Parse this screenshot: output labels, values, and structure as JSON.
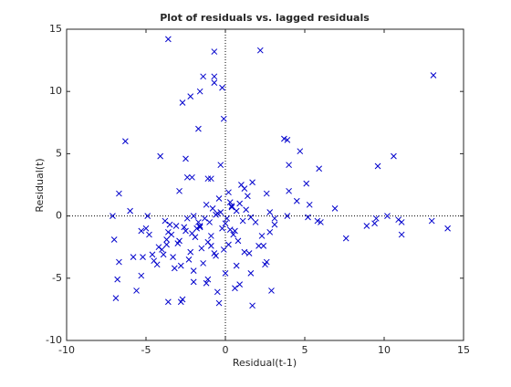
{
  "chart_data": {
    "type": "scatter",
    "title": "Plot of residuals vs. lagged residuals",
    "x_label": "Residual(t-1)",
    "y_label": "Residual(t)",
    "color": "#0000cc",
    "marker": "x",
    "xlim": [
      -10,
      15
    ],
    "ylim": [
      -10,
      15
    ],
    "xticks": [
      -10,
      -5,
      0,
      5,
      10,
      15
    ],
    "yticks": [
      -10,
      -5,
      0,
      5,
      10,
      15
    ],
    "reference_lines": {
      "x": 0,
      "y": 0
    },
    "x": [
      -3.6,
      -0.7,
      2.2,
      13.1,
      -1.4,
      -0.7,
      -0.7,
      -0.2,
      -2.2,
      -2.7,
      -1.6,
      -0.1,
      -1.7,
      -6.3,
      3.7,
      3.9,
      4.7,
      -4.1,
      10.6,
      9.6,
      -2.5,
      -0.3,
      4.0,
      5.9,
      -2.4,
      -2.1,
      -1.1,
      -0.9,
      1.7,
      1.0,
      0.2,
      1.2,
      5.1,
      -6.7,
      -2.9,
      2.6,
      4.0,
      1.4,
      4.5,
      5.3,
      -6.0,
      -7.1,
      -4.9,
      -3.5,
      -5.3,
      2.8,
      3.9,
      5.2,
      5.8,
      6.0,
      6.9,
      7.6,
      8.9,
      9.4,
      9.5,
      10.2,
      10.9,
      11.1,
      11.1,
      13.0,
      14.0,
      -7.0,
      -6.7,
      -6.8,
      -6.9,
      -5.6,
      -5.3,
      -5.2,
      -5.8,
      -4.6,
      -3.7,
      -3.6,
      -2.8,
      -2.7,
      -2.0,
      -1.2,
      -1.1,
      -0.5,
      -0.4,
      0.0,
      0.6,
      0.9,
      1.6,
      1.7,
      2.9,
      2.5,
      2.6,
      2.4,
      2.1,
      2.8,
      3.1,
      3.1,
      -0.3,
      0.1,
      0.4,
      -0.6,
      -1.0,
      0.7,
      -0.2,
      0.3,
      -0.8,
      1.1,
      0.5,
      -1.3,
      -0.4,
      0.2,
      -1.6,
      0.9,
      -0.1,
      0.6,
      -2.0,
      -0.9,
      1.3,
      -0.5,
      0.0,
      0.8,
      -1.2,
      1.6,
      -0.7,
      0.3,
      -1.8,
      0.4,
      -4.2,
      -3.9,
      -3.4,
      -3.0,
      -2.6,
      -2.3,
      -1.9,
      -1.5,
      -4.5,
      -3.7,
      -3.1,
      -2.8,
      -2.2,
      -1.7,
      -4.0,
      -3.3,
      -2.5,
      -2.0,
      -1.4,
      -3.6,
      -2.9,
      -1.1,
      -4.3,
      -3.8,
      -2.4,
      -1.6,
      -0.9,
      -3.2,
      -2.1,
      -0.6,
      1.9,
      1.2,
      0.7,
      2.3,
      1.5,
      -5.0,
      -4.8
    ],
    "values": [
      14.2,
      13.2,
      13.3,
      11.3,
      11.2,
      11.2,
      10.7,
      10.3,
      9.6,
      9.1,
      10.0,
      7.8,
      7.0,
      6.0,
      6.2,
      6.1,
      5.2,
      4.8,
      4.8,
      4.0,
      4.6,
      4.1,
      4.1,
      3.8,
      3.1,
      3.1,
      3.0,
      3.0,
      2.7,
      2.5,
      1.9,
      2.2,
      2.6,
      1.8,
      2.0,
      1.8,
      2.0,
      1.6,
      1.2,
      0.9,
      0.4,
      0.0,
      0.0,
      -0.7,
      -1.2,
      0.3,
      0.0,
      -0.1,
      -0.4,
      -0.5,
      0.6,
      -1.8,
      -0.8,
      -0.6,
      -0.2,
      0.0,
      -0.3,
      -0.5,
      -1.5,
      -0.4,
      -1.0,
      -1.9,
      -3.7,
      -5.1,
      -6.6,
      -6.0,
      -4.8,
      -3.3,
      -3.3,
      -3.1,
      -2.3,
      -6.9,
      -6.9,
      -6.7,
      -5.3,
      -5.4,
      -5.1,
      -6.1,
      -7.0,
      -4.6,
      -5.8,
      -5.5,
      -4.6,
      -7.2,
      -6.0,
      -3.9,
      -3.7,
      -2.4,
      -2.4,
      -1.3,
      -0.7,
      -0.2,
      0.3,
      -0.2,
      0.8,
      0.1,
      -0.5,
      0.4,
      -1.0,
      1.1,
      0.6,
      -0.4,
      -1.5,
      -0.2,
      1.4,
      -2.3,
      -0.8,
      1.0,
      -2.7,
      -1.2,
      0.0,
      -1.6,
      0.5,
      0.2,
      -0.6,
      -2.0,
      0.9,
      -0.1,
      -3.0,
      -1.1,
      -1.0,
      0.7,
      -2.5,
      -3.1,
      -1.5,
      -2.2,
      -0.9,
      -3.5,
      -1.7,
      -2.6,
      -3.6,
      -1.9,
      -0.8,
      -4.0,
      -2.9,
      -0.5,
      -2.7,
      -3.3,
      -1.2,
      -4.4,
      -3.8,
      -1.3,
      -2.0,
      -2.1,
      -3.9,
      -0.4,
      -0.2,
      -0.9,
      -2.4,
      -4.2,
      -1.4,
      -3.2,
      -0.5,
      -2.9,
      -4.0,
      -1.6,
      -3.0,
      -1.0,
      -1.5
    ]
  }
}
